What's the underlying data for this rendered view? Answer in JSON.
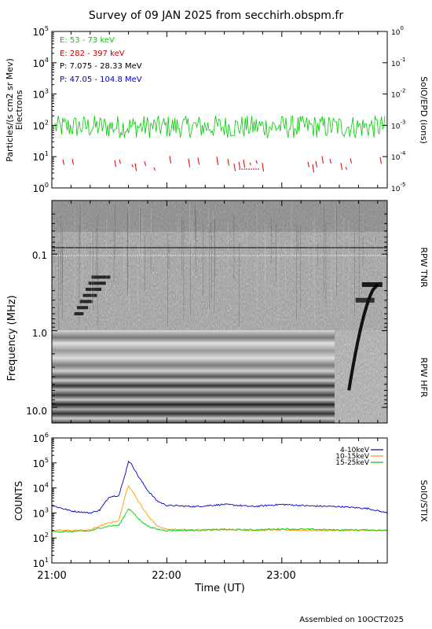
{
  "title": "Survey of 09 JAN 2025 from secchirh.obspm.fr",
  "footer": "Assembled on 10OCT2025",
  "chart_data": [
    {
      "type": "line",
      "panel": "SolO/EPD",
      "ylabel": "Particles/(s cm2 sr Mev)",
      "ylabel2": "Electrons",
      "right_label": "SolO/EPD (ions)",
      "ylim": [
        1,
        100000
      ],
      "ylim_right": [
        1e-05,
        1
      ],
      "yscale": "log",
      "y_ticks": [
        {
          "base": "10",
          "exp": "0"
        },
        {
          "base": "10",
          "exp": "1"
        },
        {
          "base": "10",
          "exp": "2"
        },
        {
          "base": "10",
          "exp": "3"
        },
        {
          "base": "10",
          "exp": "4"
        },
        {
          "base": "10",
          "exp": "5"
        }
      ],
      "y_ticks_right": [
        {
          "base": "10",
          "exp": "-5"
        },
        {
          "base": "10",
          "exp": "-4"
        },
        {
          "base": "10",
          "exp": "-3"
        },
        {
          "base": "10",
          "exp": "-2"
        },
        {
          "base": "10",
          "exp": "-1"
        },
        {
          "base": "10",
          "exp": "0"
        }
      ],
      "legend": [
        {
          "label": "E: 53 - 73 keV",
          "color": "#00cc00"
        },
        {
          "label": "E: 282 - 397 keV",
          "color": "#cc0000"
        },
        {
          "label": "P: 7.075 - 28.33 MeV",
          "color": "#000000"
        },
        {
          "label": "P: 47.05 - 104.8 MeV",
          "color": "#0000cc"
        }
      ],
      "series": [
        {
          "name": "E: 53 - 73 keV",
          "color": "#00cc00",
          "typical": 90,
          "range": [
            40,
            200
          ]
        },
        {
          "name": "E: 282 - 397 keV",
          "color": "#cc0000",
          "typical": 5,
          "range": [
            4,
            12
          ]
        }
      ]
    },
    {
      "type": "heatmap",
      "panel": "RPW",
      "ylabel": "Frequency (MHz)",
      "right_labels": [
        "RPW TNR",
        "RPW HFR"
      ],
      "yscale": "log",
      "ylim": [
        0.02,
        16
      ],
      "y_ticks": [
        "0.1",
        "1.0",
        "10.0"
      ],
      "bursts": [
        {
          "start": "21:10",
          "end": "21:25",
          "freq_mhz": [
            0.2,
            0.6
          ]
        },
        {
          "start": "23:35",
          "end": "23:50",
          "freq_mhz": [
            0.25,
            6
          ]
        }
      ]
    },
    {
      "type": "line",
      "panel": "SolO/STIX",
      "ylabel": "COUNTS",
      "right_label": "SolO/STIX",
      "yscale": "log",
      "ylim": [
        10,
        1000000
      ],
      "y_ticks": [
        {
          "base": "10",
          "exp": "1"
        },
        {
          "base": "10",
          "exp": "2"
        },
        {
          "base": "10",
          "exp": "3"
        },
        {
          "base": "10",
          "exp": "4"
        },
        {
          "base": "10",
          "exp": "5"
        },
        {
          "base": "10",
          "exp": "6"
        }
      ],
      "legend": [
        {
          "label": "4-10keV",
          "color": "#0000cc"
        },
        {
          "label": "10-15keV",
          "color": "#ff9900"
        },
        {
          "label": "15-25keV",
          "color": "#00cc00"
        }
      ],
      "x": [
        "21:00",
        "21:10",
        "21:20",
        "21:25",
        "21:30",
        "21:35",
        "21:38",
        "21:40",
        "21:42",
        "21:45",
        "21:50",
        "21:55",
        "22:00",
        "22:15",
        "22:30",
        "22:45",
        "23:00",
        "23:15",
        "23:30",
        "23:45",
        "23:55"
      ],
      "series": [
        {
          "name": "4-10keV",
          "color": "#0000cc",
          "values": [
            2000,
            1200,
            1000,
            1300,
            4500,
            5000,
            30000,
            120000,
            80000,
            30000,
            8000,
            3000,
            2000,
            1800,
            2200,
            1800,
            2200,
            1900,
            1800,
            1500,
            1000
          ]
        },
        {
          "name": "10-15keV",
          "color": "#ff9900",
          "values": [
            200,
            200,
            210,
            300,
            400,
            500,
            4000,
            12000,
            8000,
            3000,
            800,
            300,
            220,
            210,
            220,
            200,
            210,
            200,
            200,
            200,
            200
          ]
        },
        {
          "name": "15-25keV",
          "color": "#00cc00",
          "values": [
            180,
            180,
            190,
            250,
            300,
            320,
            800,
            1500,
            1100,
            600,
            300,
            220,
            200,
            200,
            220,
            210,
            230,
            220,
            210,
            210,
            200
          ]
        }
      ]
    }
  ],
  "x_axis": {
    "label": "Time (UT)",
    "xlim": [
      "21:00",
      "23:55"
    ],
    "tick_labels": [
      "21:00",
      "22:00",
      "23:00"
    ]
  }
}
